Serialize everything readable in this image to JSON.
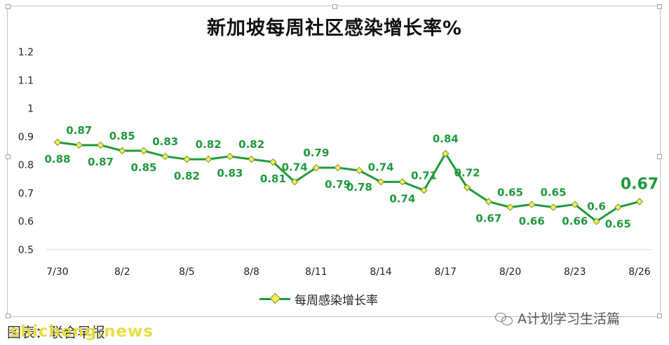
{
  "chart_data": {
    "type": "line",
    "title": "新加坡每周社区感染增长率%",
    "x": [
      "7/30",
      "7/31",
      "8/1",
      "8/2",
      "8/3",
      "8/4",
      "8/5",
      "8/6",
      "8/7",
      "8/8",
      "8/9",
      "8/10",
      "8/11",
      "8/12",
      "8/13",
      "8/14",
      "8/15",
      "8/16",
      "8/17",
      "8/18",
      "8/19",
      "8/20",
      "8/21",
      "8/22",
      "8/23",
      "8/24",
      "8/25",
      "8/26"
    ],
    "x_tick_labels": [
      "7/30",
      "8/2",
      "8/5",
      "8/8",
      "8/11",
      "8/14",
      "8/17",
      "8/20",
      "8/23",
      "8/26"
    ],
    "y_ticks": [
      "0.5",
      "0.6",
      "0.7",
      "0.8",
      "0.9",
      "1",
      "1.1",
      "1.2"
    ],
    "ylim": [
      0.5,
      1.2
    ],
    "series": [
      {
        "name": "每周感染增长率",
        "color": "#1e9a3c",
        "marker_color": "#f3ee5a",
        "values": [
          0.88,
          0.87,
          0.87,
          0.85,
          0.85,
          0.83,
          0.82,
          0.82,
          0.83,
          0.82,
          0.81,
          0.74,
          0.79,
          0.79,
          0.78,
          0.74,
          0.74,
          0.71,
          0.84,
          0.72,
          0.67,
          0.65,
          0.66,
          0.65,
          0.66,
          0.6,
          0.65,
          0.67
        ],
        "labels": [
          "0.88",
          "0.87",
          "0.87",
          "0.85",
          "0.85",
          "0.83",
          "0.82",
          "0.82",
          "0.83",
          "0.82",
          "0.81",
          "0.74",
          "0.79",
          "0.79",
          "0.78",
          "0.74",
          "0.74",
          "0.71",
          "0.84",
          "0.72",
          "0.67",
          "0.65",
          "0.66",
          "0.65",
          "0.66",
          "0.6",
          "0.65",
          "0.67"
        ]
      }
    ],
    "legend_position": "bottom",
    "grid": false
  },
  "watermark": {
    "text": "A计划学习生活篇",
    "icon": "wechat-icon"
  },
  "source": {
    "text": "图表：联合早报",
    "overlay": "shicheng.news"
  }
}
